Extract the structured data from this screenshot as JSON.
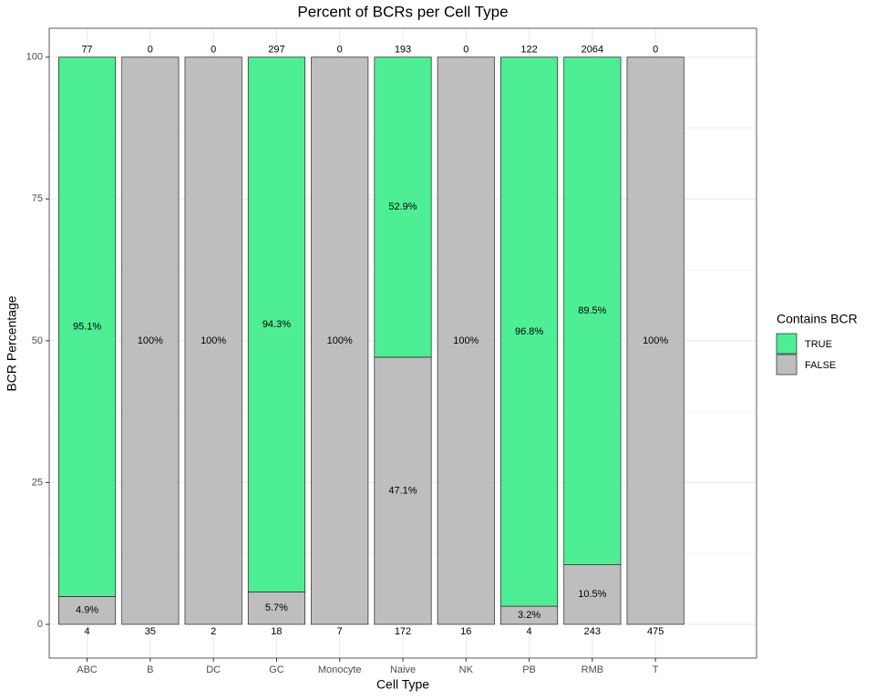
{
  "chart_data": {
    "type": "stacked_bar",
    "title": "Percent of BCRs per Cell Type",
    "x_label": "Cell Type",
    "y_label": "BCR Percentage",
    "categories": [
      "ABC",
      "B",
      "DC",
      "GC",
      "Monocyte",
      "Naive",
      "NK",
      "PB",
      "RMB",
      "T"
    ],
    "series": [
      {
        "name": "TRUE",
        "color": "#4eee94",
        "values": [
          95.1,
          0,
          0,
          94.3,
          0,
          52.9,
          0,
          96.8,
          89.5,
          0
        ],
        "value_labels": [
          "95.1%",
          null,
          null,
          "94.3%",
          null,
          "52.9%",
          null,
          "96.8%",
          "89.5%",
          null
        ],
        "count_labels": [
          77,
          0,
          0,
          297,
          0,
          193,
          0,
          122,
          2064,
          0
        ]
      },
      {
        "name": "FALSE",
        "color": "#bebebe",
        "values": [
          4.9,
          100,
          100,
          5.7,
          100,
          47.1,
          100,
          3.2,
          10.5,
          100
        ],
        "value_labels": [
          "4.9%",
          "100%",
          "100%",
          "5.7%",
          "100%",
          "47.1%",
          "100%",
          "3.2%",
          "10.5%",
          "100%"
        ],
        "count_labels": [
          4,
          35,
          2,
          18,
          7,
          172,
          16,
          4,
          243,
          475
        ]
      }
    ],
    "legend_title": "Contains BCR",
    "legend_position": "right",
    "ylim": [
      -5.95,
      105.1
    ],
    "yticks": [
      0,
      25,
      50,
      75,
      100
    ],
    "grid": true
  }
}
